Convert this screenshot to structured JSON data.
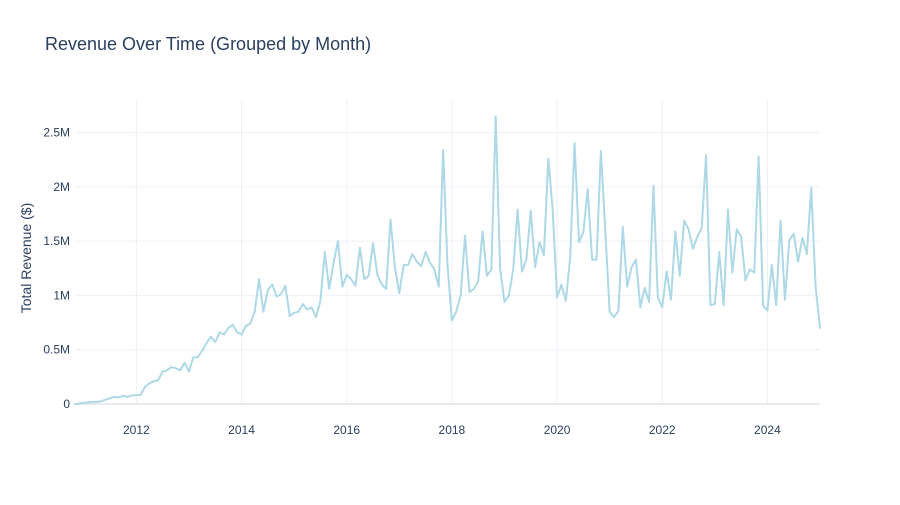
{
  "chart_data": {
    "type": "line",
    "title": "Revenue Over Time (Grouped by Month)",
    "xlabel": "",
    "ylabel": "Total Revenue ($)",
    "line_color": "#add8e6",
    "grid": true,
    "xlim": [
      "2010-11",
      "2025-01"
    ],
    "ylim": [
      0,
      2800000
    ],
    "x_ticks": [
      {
        "value": "2012-01",
        "label": "2012"
      },
      {
        "value": "2014-01",
        "label": "2014"
      },
      {
        "value": "2016-01",
        "label": "2016"
      },
      {
        "value": "2018-01",
        "label": "2018"
      },
      {
        "value": "2020-01",
        "label": "2020"
      },
      {
        "value": "2022-01",
        "label": "2022"
      },
      {
        "value": "2024-01",
        "label": "2024"
      }
    ],
    "y_ticks": [
      {
        "value": 0,
        "label": "0"
      },
      {
        "value": 500000,
        "label": "0.5M"
      },
      {
        "value": 1000000,
        "label": "1M"
      },
      {
        "value": 1500000,
        "label": "1.5M"
      },
      {
        "value": 2000000,
        "label": "2M"
      },
      {
        "value": 2500000,
        "label": "2.5M"
      }
    ],
    "series": [
      {
        "name": "",
        "points": [
          [
            "2010-11",
            0
          ],
          [
            "2010-12",
            5000
          ],
          [
            "2011-01",
            10000
          ],
          [
            "2011-02",
            15000
          ],
          [
            "2011-03",
            20000
          ],
          [
            "2011-04",
            20000
          ],
          [
            "2011-05",
            25000
          ],
          [
            "2011-06",
            40000
          ],
          [
            "2011-07",
            55000
          ],
          [
            "2011-08",
            65000
          ],
          [
            "2011-09",
            60000
          ],
          [
            "2011-10",
            75000
          ],
          [
            "2011-11",
            65000
          ],
          [
            "2011-12",
            80000
          ],
          [
            "2012-01",
            80000
          ],
          [
            "2012-02",
            85000
          ],
          [
            "2012-03",
            160000
          ],
          [
            "2012-04",
            190000
          ],
          [
            "2012-05",
            210000
          ],
          [
            "2012-06",
            220000
          ],
          [
            "2012-07",
            300000
          ],
          [
            "2012-08",
            310000
          ],
          [
            "2012-09",
            340000
          ],
          [
            "2012-10",
            330000
          ],
          [
            "2012-11",
            310000
          ],
          [
            "2012-12",
            380000
          ],
          [
            "2013-01",
            300000
          ],
          [
            "2013-02",
            430000
          ],
          [
            "2013-03",
            430000
          ],
          [
            "2013-04",
            490000
          ],
          [
            "2013-05",
            560000
          ],
          [
            "2013-06",
            620000
          ],
          [
            "2013-07",
            570000
          ],
          [
            "2013-08",
            660000
          ],
          [
            "2013-09",
            640000
          ],
          [
            "2013-10",
            700000
          ],
          [
            "2013-11",
            730000
          ],
          [
            "2013-12",
            660000
          ],
          [
            "2014-01",
            640000
          ],
          [
            "2014-02",
            720000
          ],
          [
            "2014-03",
            740000
          ],
          [
            "2014-04",
            850000
          ],
          [
            "2014-05",
            1150000
          ],
          [
            "2014-06",
            850000
          ],
          [
            "2014-07",
            1050000
          ],
          [
            "2014-08",
            1100000
          ],
          [
            "2014-09",
            990000
          ],
          [
            "2014-10",
            1010000
          ],
          [
            "2014-11",
            1090000
          ],
          [
            "2014-12",
            810000
          ],
          [
            "2015-01",
            840000
          ],
          [
            "2015-02",
            850000
          ],
          [
            "2015-03",
            920000
          ],
          [
            "2015-04",
            870000
          ],
          [
            "2015-05",
            890000
          ],
          [
            "2015-06",
            800000
          ],
          [
            "2015-07",
            950000
          ],
          [
            "2015-08",
            1400000
          ],
          [
            "2015-09",
            1060000
          ],
          [
            "2015-10",
            1300000
          ],
          [
            "2015-11",
            1500000
          ],
          [
            "2015-12",
            1080000
          ],
          [
            "2016-01",
            1190000
          ],
          [
            "2016-02",
            1150000
          ],
          [
            "2016-03",
            1090000
          ],
          [
            "2016-04",
            1440000
          ],
          [
            "2016-05",
            1150000
          ],
          [
            "2016-06",
            1180000
          ],
          [
            "2016-07",
            1480000
          ],
          [
            "2016-08",
            1190000
          ],
          [
            "2016-09",
            1100000
          ],
          [
            "2016-10",
            1060000
          ],
          [
            "2016-11",
            1700000
          ],
          [
            "2016-12",
            1260000
          ],
          [
            "2017-01",
            1020000
          ],
          [
            "2017-02",
            1280000
          ],
          [
            "2017-03",
            1280000
          ],
          [
            "2017-04",
            1380000
          ],
          [
            "2017-05",
            1310000
          ],
          [
            "2017-06",
            1270000
          ],
          [
            "2017-07",
            1400000
          ],
          [
            "2017-08",
            1300000
          ],
          [
            "2017-09",
            1240000
          ],
          [
            "2017-10",
            1080000
          ],
          [
            "2017-11",
            2340000
          ],
          [
            "2017-12",
            1280000
          ],
          [
            "2018-01",
            770000
          ],
          [
            "2018-02",
            850000
          ],
          [
            "2018-03",
            1000000
          ],
          [
            "2018-04",
            1550000
          ],
          [
            "2018-05",
            1030000
          ],
          [
            "2018-06",
            1060000
          ],
          [
            "2018-07",
            1130000
          ],
          [
            "2018-08",
            1590000
          ],
          [
            "2018-09",
            1180000
          ],
          [
            "2018-10",
            1240000
          ],
          [
            "2018-11",
            2650000
          ],
          [
            "2018-12",
            1250000
          ],
          [
            "2019-01",
            940000
          ],
          [
            "2019-02",
            1000000
          ],
          [
            "2019-03",
            1240000
          ],
          [
            "2019-04",
            1790000
          ],
          [
            "2019-05",
            1220000
          ],
          [
            "2019-06",
            1330000
          ],
          [
            "2019-07",
            1780000
          ],
          [
            "2019-08",
            1260000
          ],
          [
            "2019-09",
            1490000
          ],
          [
            "2019-10",
            1370000
          ],
          [
            "2019-11",
            2260000
          ],
          [
            "2019-12",
            1790000
          ],
          [
            "2020-01",
            980000
          ],
          [
            "2020-02",
            1100000
          ],
          [
            "2020-03",
            950000
          ],
          [
            "2020-04",
            1350000
          ],
          [
            "2020-05",
            2400000
          ],
          [
            "2020-06",
            1490000
          ],
          [
            "2020-07",
            1580000
          ],
          [
            "2020-08",
            1980000
          ],
          [
            "2020-09",
            1330000
          ],
          [
            "2020-10",
            1330000
          ],
          [
            "2020-11",
            2330000
          ],
          [
            "2020-12",
            1600000
          ],
          [
            "2021-01",
            850000
          ],
          [
            "2021-02",
            800000
          ],
          [
            "2021-03",
            860000
          ],
          [
            "2021-04",
            1630000
          ],
          [
            "2021-05",
            1080000
          ],
          [
            "2021-06",
            1260000
          ],
          [
            "2021-07",
            1330000
          ],
          [
            "2021-08",
            890000
          ],
          [
            "2021-09",
            1070000
          ],
          [
            "2021-10",
            940000
          ],
          [
            "2021-11",
            2010000
          ],
          [
            "2021-12",
            980000
          ],
          [
            "2022-01",
            890000
          ],
          [
            "2022-02",
            1220000
          ],
          [
            "2022-03",
            960000
          ],
          [
            "2022-04",
            1590000
          ],
          [
            "2022-05",
            1180000
          ],
          [
            "2022-06",
            1690000
          ],
          [
            "2022-07",
            1610000
          ],
          [
            "2022-08",
            1430000
          ],
          [
            "2022-09",
            1540000
          ],
          [
            "2022-10",
            1620000
          ],
          [
            "2022-11",
            2290000
          ],
          [
            "2022-12",
            910000
          ],
          [
            "2023-01",
            920000
          ],
          [
            "2023-02",
            1400000
          ],
          [
            "2023-03",
            910000
          ],
          [
            "2023-04",
            1790000
          ],
          [
            "2023-05",
            1210000
          ],
          [
            "2023-06",
            1610000
          ],
          [
            "2023-07",
            1540000
          ],
          [
            "2023-08",
            1140000
          ],
          [
            "2023-09",
            1240000
          ],
          [
            "2023-10",
            1210000
          ],
          [
            "2023-11",
            2280000
          ],
          [
            "2023-12",
            910000
          ],
          [
            "2024-01",
            860000
          ],
          [
            "2024-02",
            1280000
          ],
          [
            "2024-03",
            910000
          ],
          [
            "2024-04",
            1690000
          ],
          [
            "2024-05",
            960000
          ],
          [
            "2024-06",
            1510000
          ],
          [
            "2024-07",
            1570000
          ],
          [
            "2024-08",
            1310000
          ],
          [
            "2024-09",
            1530000
          ],
          [
            "2024-10",
            1380000
          ],
          [
            "2024-11",
            1990000
          ],
          [
            "2024-12",
            1080000
          ],
          [
            "2025-01",
            700000
          ]
        ]
      }
    ]
  }
}
